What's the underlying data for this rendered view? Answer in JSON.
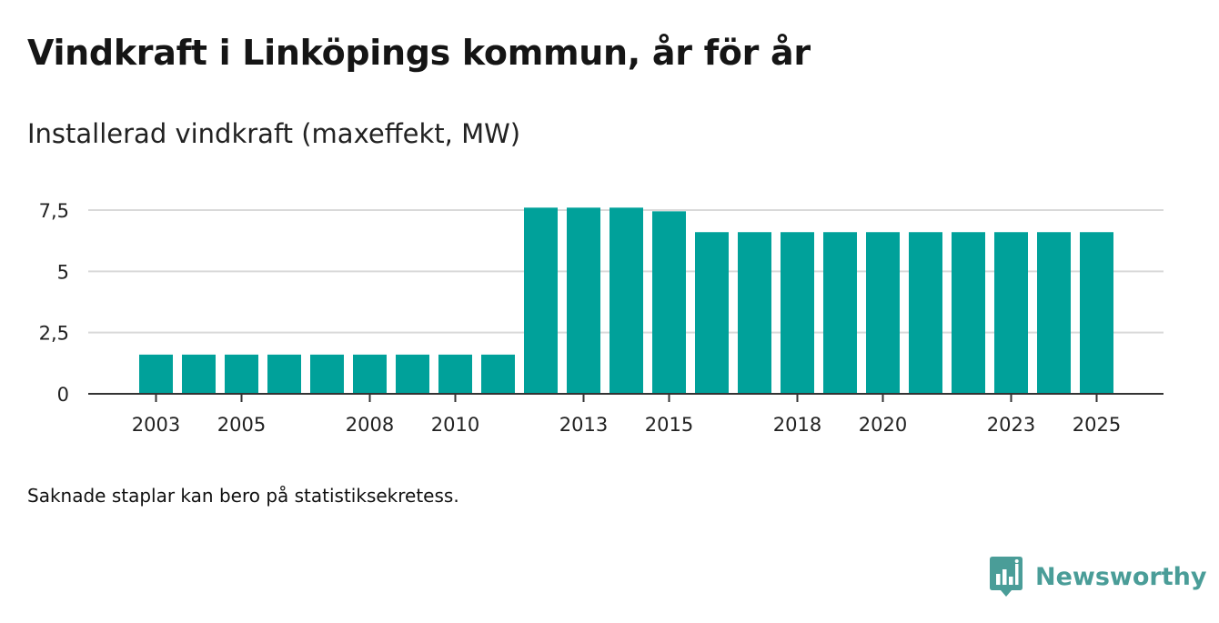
{
  "title": "Vindkraft i Linköpings kommun, år för år",
  "subtitle": "Installerad vindkraft (maxeffekt, MW)",
  "note": "Saknade staplar kan bero på statistiksekretess.",
  "brand": {
    "name": "Newsworthy",
    "icon": "bar-chart-speech-bubble-icon",
    "color": "#4a9d98"
  },
  "colors": {
    "bar": "#00a19a",
    "grid": "#d9d9d9",
    "axis": "#333333"
  },
  "chart_data": {
    "type": "bar",
    "title": "Vindkraft i Linköpings kommun, år för år",
    "ylabel": "Installerad vindkraft (maxeffekt, MW)",
    "xlabel": "",
    "ylim": [
      0,
      8
    ],
    "grid": true,
    "y_ticks": [
      0,
      2.5,
      5,
      7.5
    ],
    "y_tick_labels": [
      "0",
      "2,5",
      "5",
      "7,5"
    ],
    "x_tick_labels": [
      "2003",
      "2005",
      "2008",
      "2010",
      "2013",
      "2015",
      "2018",
      "2020",
      "2023",
      "2025"
    ],
    "categories": [
      "2003",
      "2004",
      "2005",
      "2006",
      "2007",
      "2008",
      "2009",
      "2010",
      "2011",
      "2012",
      "2013",
      "2014",
      "2015",
      "2016",
      "2017",
      "2018",
      "2019",
      "2020",
      "2021",
      "2022",
      "2023",
      "2024",
      "2025"
    ],
    "values": [
      1.6,
      1.6,
      1.6,
      1.6,
      1.6,
      1.6,
      1.6,
      1.6,
      1.6,
      7.6,
      7.6,
      7.6,
      7.45,
      6.6,
      6.6,
      6.6,
      6.6,
      6.6,
      6.6,
      6.6,
      6.6,
      6.6,
      6.6
    ]
  }
}
